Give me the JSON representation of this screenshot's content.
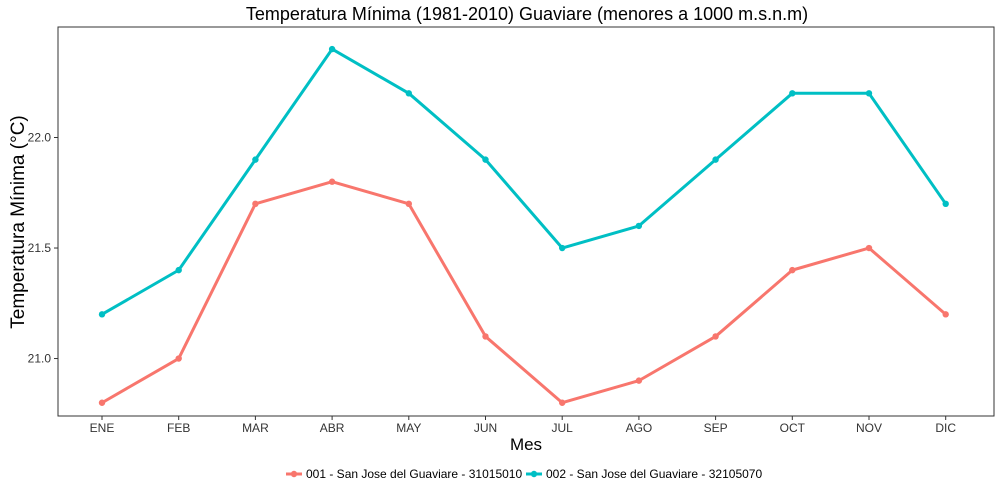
{
  "chart_data": {
    "type": "line",
    "title": "Temperatura Mínima (1981-2010) Guaviare (menores a 1000 m.s.n.m)",
    "xlabel": "Mes",
    "ylabel": "Temperatura Mínima (°C)",
    "categories": [
      "ENE",
      "FEB",
      "MAR",
      "ABR",
      "MAY",
      "JUN",
      "JUL",
      "AGO",
      "SEP",
      "OCT",
      "NOV",
      "DIC"
    ],
    "ylim": [
      20.74,
      22.5
    ],
    "yticks": [
      21.0,
      21.5,
      22.0
    ],
    "ytick_labels": [
      "21.0",
      "21.5",
      "22.0"
    ],
    "grid": false,
    "legend_position": "bottom",
    "series": [
      {
        "name": "001 - San Jose del Guaviare - 31015010",
        "color": "#F8766D",
        "values": [
          20.8,
          21.0,
          21.7,
          21.8,
          21.7,
          21.1,
          20.8,
          20.9,
          21.1,
          21.4,
          21.5,
          21.2
        ]
      },
      {
        "name": "002 - San Jose del Guaviare - 32105070",
        "color": "#00BFC4",
        "values": [
          21.2,
          21.4,
          21.9,
          22.4,
          22.2,
          21.9,
          21.5,
          21.6,
          21.9,
          22.2,
          22.2,
          21.7
        ]
      }
    ]
  }
}
